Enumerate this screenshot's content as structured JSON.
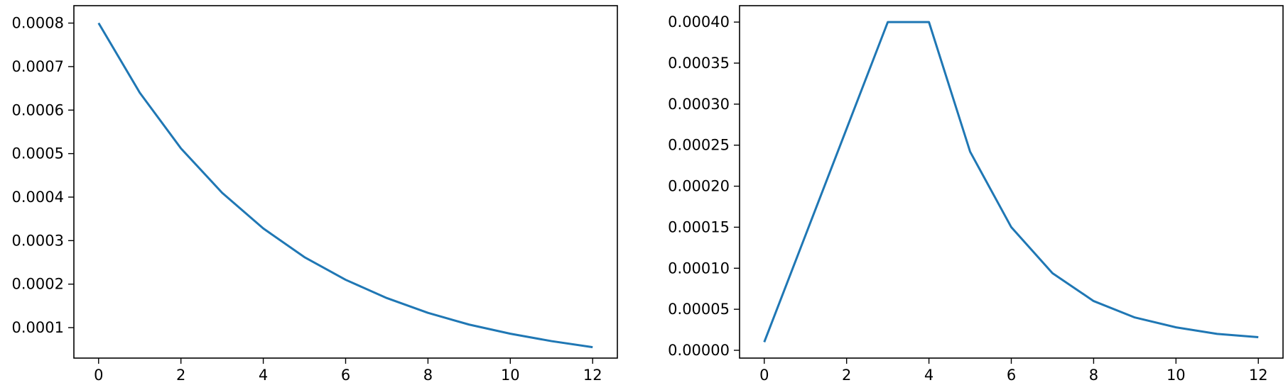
{
  "chart_data": [
    {
      "type": "line",
      "title": "",
      "xlabel": "",
      "ylabel": "",
      "grid": false,
      "xlim": [
        -0.6,
        12.6
      ],
      "ylim": [
        3e-05,
        0.00084
      ],
      "xticks": [
        0,
        2,
        4,
        6,
        8,
        10,
        12
      ],
      "xtick_labels": [
        "0",
        "2",
        "4",
        "6",
        "8",
        "10",
        "12"
      ],
      "yticks": [
        0.0001,
        0.0002,
        0.0003,
        0.0004,
        0.0005,
        0.0006,
        0.0007,
        0.0008
      ],
      "ytick_labels": [
        "0.0001",
        "0.0002",
        "0.0003",
        "0.0004",
        "0.0005",
        "0.0006",
        "0.0007",
        "0.0008"
      ],
      "series": [
        {
          "color": "#1f77b4",
          "x": [
            0,
            1,
            2,
            3,
            4,
            5,
            6,
            7,
            8,
            9,
            10,
            11,
            12
          ],
          "y": [
            0.0008,
            0.00064,
            0.000512,
            0.00041,
            0.000328,
            0.000262,
            0.00021,
            0.000168,
            0.000134,
            0.000107,
            8.6e-05,
            6.9e-05,
            5.5e-05
          ]
        }
      ]
    },
    {
      "type": "line",
      "title": "",
      "xlabel": "",
      "ylabel": "",
      "grid": false,
      "xlim": [
        -0.6,
        12.6
      ],
      "ylim": [
        -9.5e-06,
        0.00042
      ],
      "xticks": [
        0,
        2,
        4,
        6,
        8,
        10,
        12
      ],
      "xtick_labels": [
        "0",
        "2",
        "4",
        "6",
        "8",
        "10",
        "12"
      ],
      "yticks": [
        0,
        5e-05,
        0.0001,
        0.00015,
        0.0002,
        0.00025,
        0.0003,
        0.00035,
        0.0004
      ],
      "ytick_labels": [
        "0.00000",
        "0.00005",
        "0.00010",
        "0.00015",
        "0.00020",
        "0.00025",
        "0.00030",
        "0.00035",
        "0.00040"
      ],
      "series": [
        {
          "color": "#1f77b4",
          "x": [
            0,
            1,
            2,
            3,
            4,
            5,
            6,
            7,
            8,
            9,
            10,
            11,
            12
          ],
          "y": [
            1e-05,
            0.00014,
            0.00027,
            0.0004,
            0.0004,
            0.000242,
            0.00015,
            9.4e-05,
            6e-05,
            4e-05,
            2.8e-05,
            2e-05,
            1.6e-05
          ]
        }
      ]
    }
  ]
}
